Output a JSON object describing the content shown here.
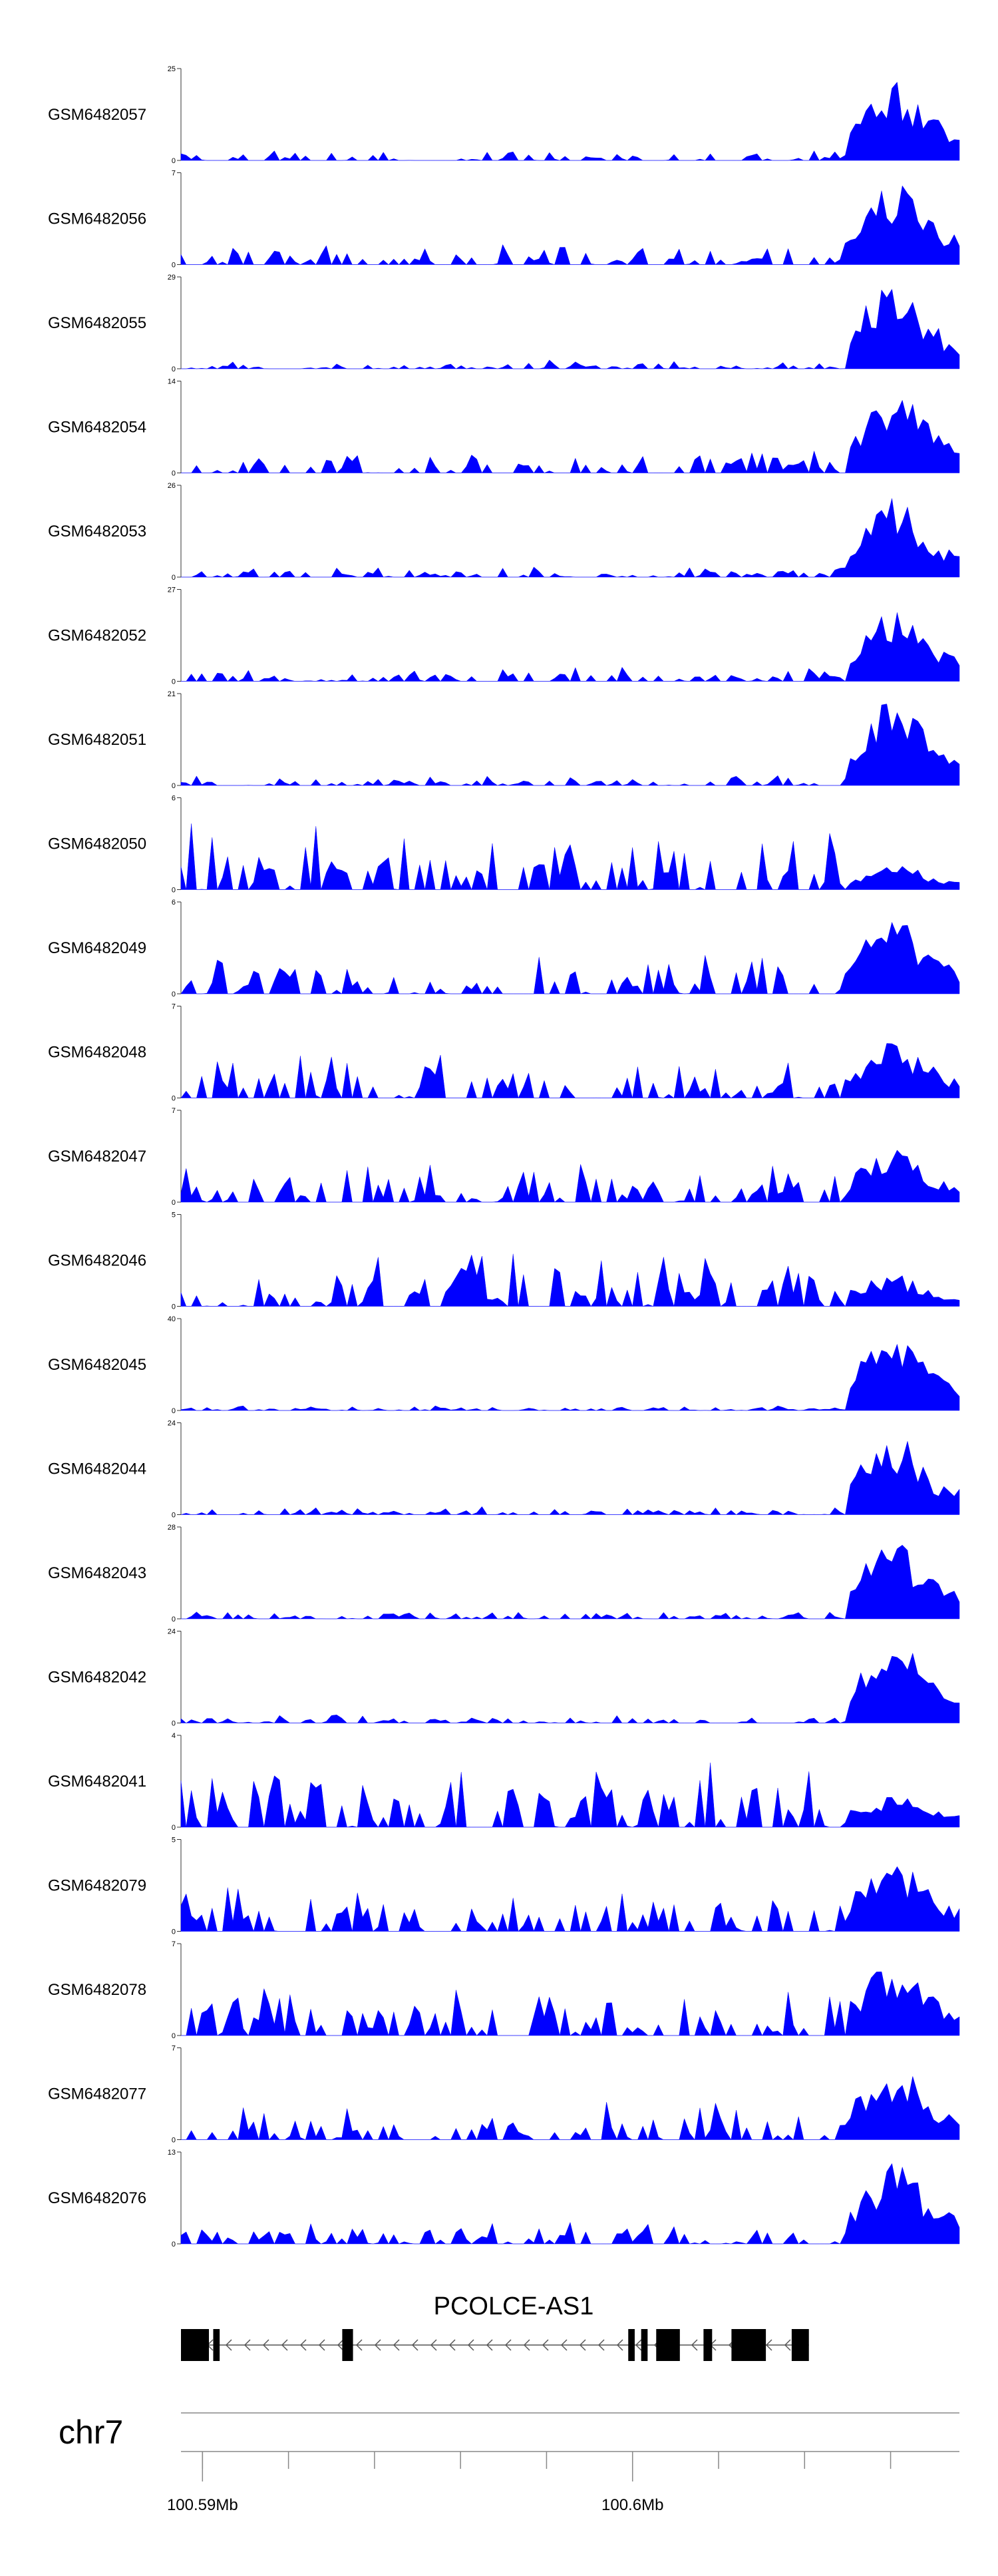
{
  "chart_data": {
    "type": "area",
    "color": "#0000ff",
    "x_range_mb": [
      100.5885,
      100.6066
    ],
    "tracks": [
      {
        "name": "GSM6482057",
        "ylim": [
          0,
          25
        ],
        "hot": 0.92,
        "bg": 0.1,
        "seed": 3
      },
      {
        "name": "GSM6482056",
        "ylim": [
          0,
          7
        ],
        "hot": 0.92,
        "bg": 0.18,
        "seed": 7
      },
      {
        "name": "GSM6482055",
        "ylim": [
          0,
          29
        ],
        "hot": 0.95,
        "bg": 0.07,
        "seed": 11
      },
      {
        "name": "GSM6482054",
        "ylim": [
          0,
          14
        ],
        "hot": 0.9,
        "bg": 0.22,
        "seed": 13
      },
      {
        "name": "GSM6482053",
        "ylim": [
          0,
          26
        ],
        "hot": 0.88,
        "bg": 0.09,
        "seed": 17
      },
      {
        "name": "GSM6482052",
        "ylim": [
          0,
          27
        ],
        "hot": 0.82,
        "bg": 0.12,
        "seed": 19
      },
      {
        "name": "GSM6482051",
        "ylim": [
          0,
          21
        ],
        "hot": 0.95,
        "bg": 0.09,
        "seed": 23
      },
      {
        "name": "GSM6482050",
        "ylim": [
          0,
          6
        ],
        "hot": 0.3,
        "bg": 0.55,
        "seed": 29
      },
      {
        "name": "GSM6482049",
        "ylim": [
          0,
          6
        ],
        "hot": 0.82,
        "bg": 0.32,
        "seed": 31
      },
      {
        "name": "GSM6482048",
        "ylim": [
          0,
          7
        ],
        "hot": 0.65,
        "bg": 0.38,
        "seed": 37
      },
      {
        "name": "GSM6482047",
        "ylim": [
          0,
          7
        ],
        "hot": 0.6,
        "bg": 0.36,
        "seed": 41
      },
      {
        "name": "GSM6482046",
        "ylim": [
          0,
          5
        ],
        "hot": 0.35,
        "bg": 0.45,
        "seed": 43
      },
      {
        "name": "GSM6482045",
        "ylim": [
          0,
          40
        ],
        "hot": 0.85,
        "bg": 0.04,
        "seed": 47
      },
      {
        "name": "GSM6482044",
        "ylim": [
          0,
          24
        ],
        "hot": 0.88,
        "bg": 0.07,
        "seed": 53
      },
      {
        "name": "GSM6482043",
        "ylim": [
          0,
          28
        ],
        "hot": 0.85,
        "bg": 0.07,
        "seed": 59
      },
      {
        "name": "GSM6482042",
        "ylim": [
          0,
          24
        ],
        "hot": 0.9,
        "bg": 0.07,
        "seed": 61
      },
      {
        "name": "GSM6482041",
        "ylim": [
          0,
          4
        ],
        "hot": 0.4,
        "bg": 0.6,
        "seed": 67
      },
      {
        "name": "GSM6482079",
        "ylim": [
          0,
          5
        ],
        "hot": 0.78,
        "bg": 0.45,
        "seed": 71
      },
      {
        "name": "GSM6482078",
        "ylim": [
          0,
          7
        ],
        "hot": 0.8,
        "bg": 0.38,
        "seed": 73
      },
      {
        "name": "GSM6482077",
        "ylim": [
          0,
          7
        ],
        "hot": 0.82,
        "bg": 0.33,
        "seed": 79
      },
      {
        "name": "GSM6482076",
        "ylim": [
          0,
          13
        ],
        "hot": 0.88,
        "bg": 0.18,
        "seed": 83
      }
    ],
    "gene": {
      "name": "PCOLCE-AS1",
      "strand": "-",
      "start_mb": 100.5885,
      "end_mb": 100.6031,
      "exons_mb": [
        [
          100.5885,
          100.58915
        ],
        [
          100.58925,
          100.5894
        ],
        [
          100.59225,
          100.5925
        ],
        [
          100.5989,
          100.59905
        ],
        [
          100.5992,
          100.59935
        ],
        [
          100.59955,
          100.6001
        ],
        [
          100.60065,
          100.60085
        ],
        [
          100.6013,
          100.6021
        ],
        [
          100.6027,
          100.6031
        ]
      ]
    },
    "chromosome": "chr7",
    "ticks_mb": [
      100.589,
      100.591,
      100.593,
      100.595,
      100.597,
      100.599,
      100.601,
      100.603,
      100.605
    ],
    "tick_labels": [
      {
        "value": 100.589,
        "text": "100.59Mb"
      },
      {
        "value": 100.599,
        "text": "100.6Mb"
      }
    ]
  }
}
